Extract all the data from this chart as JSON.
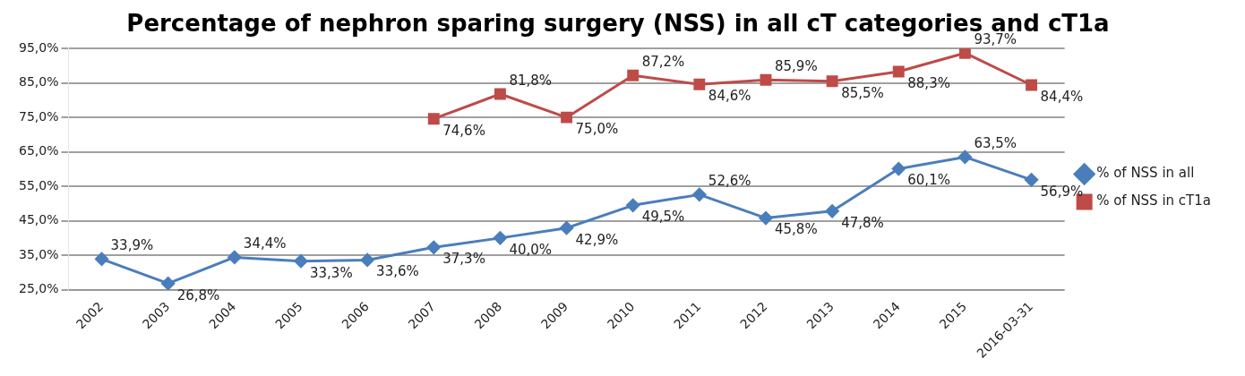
{
  "chart_data": {
    "type": "line",
    "title": "Percentage of nephron sparing surgery (NSS) in all cT categories and cT1a",
    "categories": [
      "2002",
      "2003",
      "2004",
      "2005",
      "2006",
      "2007",
      "2008",
      "2009",
      "2010",
      "2011",
      "2012",
      "2013",
      "2014",
      "2015",
      "2016-03-31"
    ],
    "series": [
      {
        "name": "% of NSS in all",
        "color": "#4a7ebb",
        "marker": "diamond",
        "values": [
          33.9,
          26.8,
          34.4,
          33.3,
          33.6,
          37.3,
          40.0,
          42.9,
          49.5,
          52.6,
          45.8,
          47.8,
          60.1,
          63.5,
          56.9
        ],
        "value_labels": [
          "33,9%",
          "26,8%",
          "34,4%",
          "33,3%",
          "33,6%",
          "37,3%",
          "40,0%",
          "42,9%",
          "49,5%",
          "52,6%",
          "45,8%",
          "47,8%",
          "60,1%",
          "63,5%",
          "56,9%"
        ]
      },
      {
        "name": "% of NSS in cT1a",
        "color": "#be4b48",
        "marker": "square",
        "values": [
          null,
          null,
          null,
          null,
          null,
          74.6,
          81.8,
          75.0,
          87.2,
          84.6,
          85.9,
          85.5,
          88.3,
          93.7,
          84.4
        ],
        "value_labels": [
          null,
          null,
          null,
          null,
          null,
          "74,6%",
          "81,8%",
          "75,0%",
          "87,2%",
          "84,6%",
          "85,9%",
          "85,5%",
          "88,3%",
          "93,7%",
          "84,4%"
        ]
      }
    ],
    "ylim": [
      25,
      95
    ],
    "yticks": [
      {
        "value": 25,
        "label": "25,0%"
      },
      {
        "value": 35,
        "label": "35,0%"
      },
      {
        "value": 45,
        "label": "45,0%"
      },
      {
        "value": 55,
        "label": "55,0%"
      },
      {
        "value": 65,
        "label": "65,0%"
      },
      {
        "value": 75,
        "label": "75,0%"
      },
      {
        "value": 85,
        "label": "85,0%"
      },
      {
        "value": 95,
        "label": "95,0%"
      }
    ],
    "grid": "y",
    "legend": "right"
  }
}
